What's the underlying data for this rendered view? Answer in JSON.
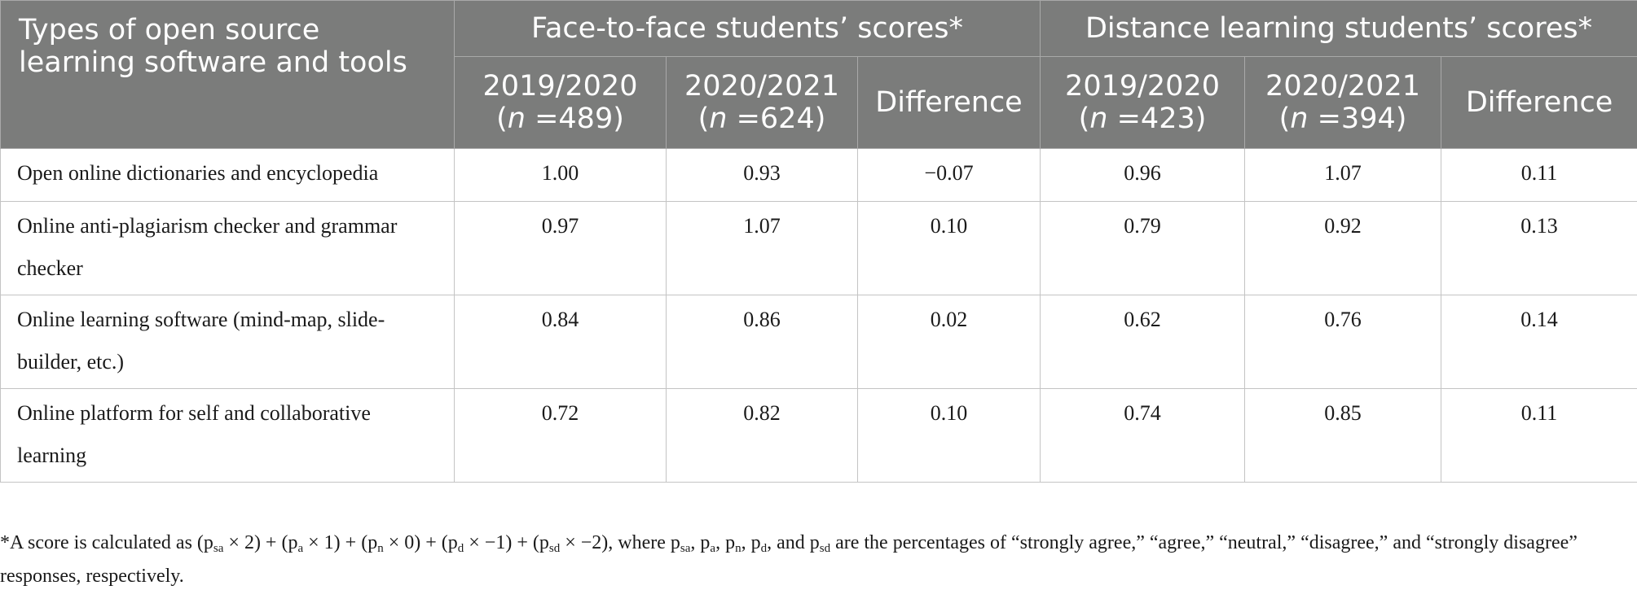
{
  "table": {
    "stub_header": "Types of open source learning software and tools",
    "groups": [
      "Face-to-face students’ scores*",
      "Distance learning students’ scores*"
    ],
    "subheaders": [
      {
        "year": "2019/2020",
        "n_label": "n",
        "n_value": "489"
      },
      {
        "year": "2020/2021",
        "n_label": "n",
        "n_value": "624"
      },
      {
        "year": "Difference"
      },
      {
        "year": "2019/2020",
        "n_label": "n",
        "n_value": "423"
      },
      {
        "year": "2020/2021",
        "n_label": "n",
        "n_value": "394"
      },
      {
        "year": "Difference"
      }
    ],
    "rows": [
      {
        "label": "Open online dictionaries and encyclopedia",
        "values": [
          "1.00",
          "0.93",
          "−0.07",
          "0.96",
          "1.07",
          "0.11"
        ]
      },
      {
        "label": "Online anti-plagiarism checker and grammar checker",
        "values": [
          "0.97",
          "1.07",
          "0.10",
          "0.79",
          "0.92",
          "0.13"
        ]
      },
      {
        "label": "Online learning software (mind-map, slide-builder, etc.)",
        "values": [
          "0.84",
          "0.86",
          "0.02",
          "0.62",
          "0.76",
          "0.14"
        ]
      },
      {
        "label": "Online platform for self and collaborative learning",
        "values": [
          "0.72",
          "0.82",
          "0.10",
          "0.74",
          "0.85",
          "0.11"
        ]
      }
    ]
  },
  "footnote": {
    "text_1": "*A score is calculated as (p",
    "sub_sa": "sa",
    "text_2": " × 2) + (p",
    "sub_a": "a",
    "text_3": " × 1) + (p",
    "sub_n": "n",
    "text_4": " × 0) + (p",
    "sub_d": "d",
    "text_5": " × −1) + (p",
    "text_6": " × −2), where p",
    "text_7": ", p",
    "text_8": ", and p",
    "text_9": " are the percentages of “strongly agree,” “agree,” “neutral,” “disagree,” and “strongly disagree” responses, respectively."
  }
}
